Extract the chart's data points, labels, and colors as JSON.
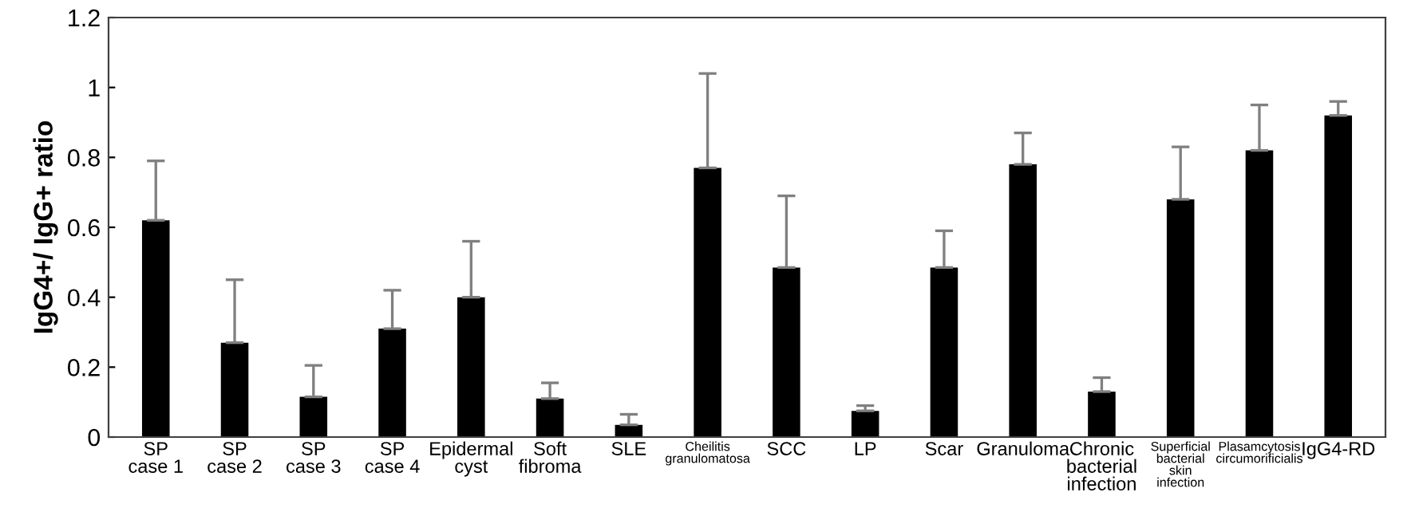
{
  "chart_data": {
    "type": "bar",
    "ylabel": "IgG4+/ IgG+ ratio",
    "categories": [
      "SP\ncase 1",
      "SP\ncase 2",
      "SP\ncase 3",
      "SP\ncase 4",
      "Epidermal\ncyst",
      "Soft\nfibroma",
      "SLE",
      "Cheilitis\ngranulomatosa",
      "SCC",
      "LP",
      "Scar",
      "Granuloma",
      "Chronic\nbacterial\ninfection",
      "Superficial\nbacterial\nskin\ninfection",
      "Plasamcytosis\ncircumorificialis",
      "IgG4-RD"
    ],
    "values": [
      0.62,
      0.27,
      0.115,
      0.31,
      0.4,
      0.11,
      0.035,
      0.77,
      0.485,
      0.075,
      0.485,
      0.78,
      0.13,
      0.68,
      0.82,
      0.92
    ],
    "errors": [
      [
        0.62,
        0.79
      ],
      [
        0.27,
        0.45
      ],
      [
        0.115,
        0.205
      ],
      [
        0.31,
        0.42
      ],
      [
        0.4,
        0.56
      ],
      [
        0.11,
        0.155
      ],
      [
        0.035,
        0.065
      ],
      [
        0.77,
        1.04
      ],
      [
        0.485,
        0.69
      ],
      [
        0.075,
        0.09
      ],
      [
        0.485,
        0.59
      ],
      [
        0.78,
        0.87
      ],
      [
        0.13,
        0.17
      ],
      [
        0.68,
        0.83
      ],
      [
        0.82,
        0.95
      ],
      [
        0.92,
        0.96
      ]
    ],
    "color": "#000000",
    "ylim": [
      0,
      1.2
    ],
    "yticks": [
      0,
      0.2,
      0.4,
      0.6,
      0.8,
      1,
      1.2
    ],
    "grid": false
  }
}
